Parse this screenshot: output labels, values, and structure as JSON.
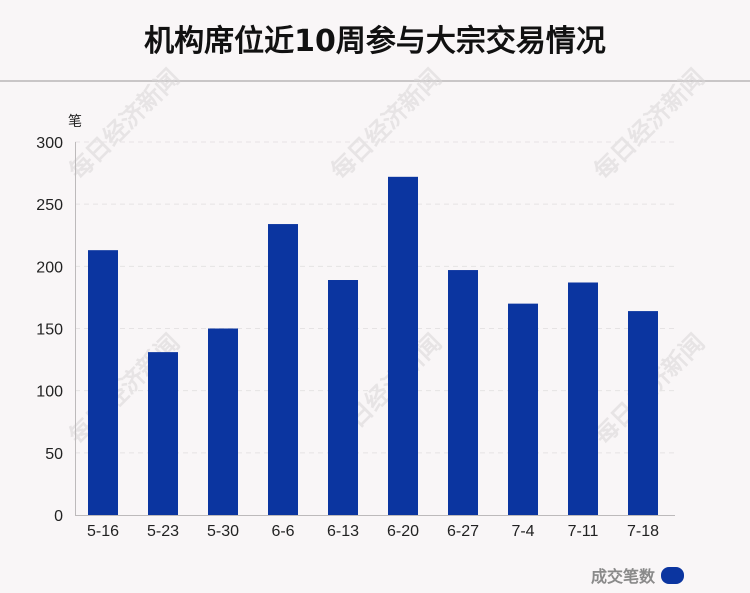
{
  "title": "机构席位近10周参与大宗交易情况",
  "unit_label": "笔",
  "watermark_text": "每日经济新闻",
  "colors": {
    "bar": "#0b35a0",
    "background": "#f9f6f7",
    "grid": "#e6e3e4",
    "axis": "#bdbabb"
  },
  "chart_data": {
    "type": "bar",
    "title": "机构席位近10周参与大宗交易情况",
    "ylabel": "笔",
    "xlabel": "",
    "categories": [
      "5-16",
      "5-23",
      "5-30",
      "6-6",
      "6-13",
      "6-20",
      "6-27",
      "7-4",
      "7-11",
      "7-18"
    ],
    "series": [
      {
        "name": "成交笔数",
        "values": [
          213,
          131,
          150,
          234,
          189,
          272,
          197,
          170,
          187,
          164
        ]
      }
    ],
    "ylim": [
      0,
      300
    ],
    "yticks": [
      0,
      50,
      100,
      150,
      200,
      250,
      300
    ],
    "grid": true,
    "legend_position": "bottom-right"
  }
}
